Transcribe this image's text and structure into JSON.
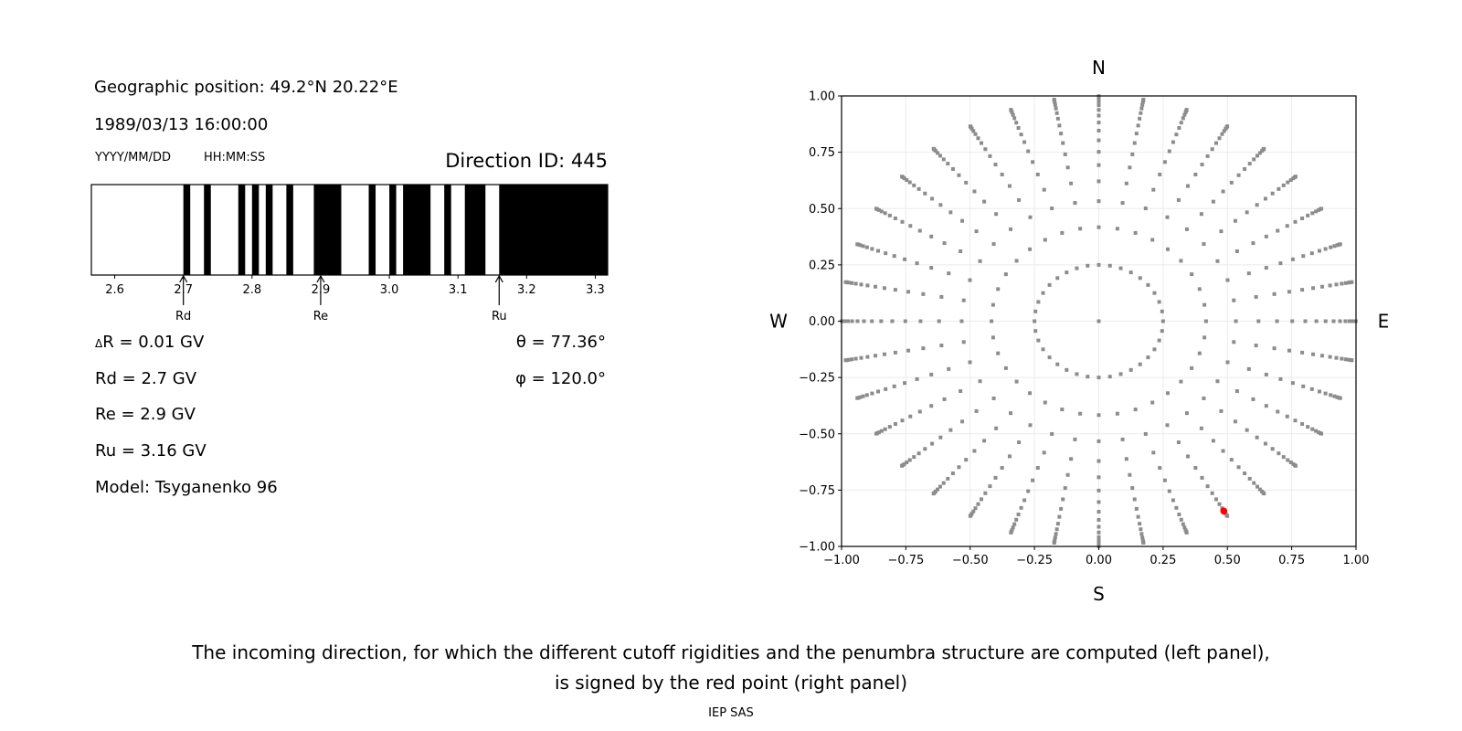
{
  "header": {
    "geo_position": "Geographic position: 49.2°N 20.22°E",
    "datetime": "1989/03/13 16:00:00",
    "date_format": "YYYY/MM/DD",
    "time_format": "HH:MM:SS",
    "direction_id": "Direction ID: 445"
  },
  "params": {
    "delta_r_symbol": "Δ",
    "delta_r": "R = 0.01 GV",
    "rd": "Rd = 2.7 GV",
    "re": "Re = 2.9 GV",
    "ru": "Ru = 3.16 GV",
    "model": "Model: Tsyganenko 96",
    "theta": "θ = 77.36°",
    "phi": "φ = 120.0°"
  },
  "caption": {
    "line1": "The incoming direction, for which the different cutoff rigidities and the penumbra structure are computed (left panel),",
    "line2": "is signed by the red point (right panel)",
    "credit": "IEP SAS"
  },
  "chart_data": [
    {
      "type": "penumbra-bar",
      "xlim": [
        2.566,
        3.318
      ],
      "xticks": [
        2.6,
        2.7,
        2.8,
        2.9,
        3.0,
        3.1,
        3.2,
        3.3
      ],
      "xtick_labels": [
        "2.6",
        "2.7",
        "2.8",
        "2.9",
        "3.0",
        "3.1",
        "3.2",
        "3.3"
      ],
      "forbidden_color": "#000000",
      "allowed_color": "#ffffff",
      "forbidden_intervals": [
        [
          2.7,
          2.71
        ],
        [
          2.73,
          2.74
        ],
        [
          2.78,
          2.79
        ],
        [
          2.8,
          2.81
        ],
        [
          2.82,
          2.83
        ],
        [
          2.85,
          2.86
        ],
        [
          2.89,
          2.93
        ],
        [
          2.97,
          2.98
        ],
        [
          3.0,
          3.01
        ],
        [
          3.02,
          3.06
        ],
        [
          3.08,
          3.09
        ],
        [
          3.11,
          3.14
        ],
        [
          3.16,
          3.318
        ]
      ],
      "markers": [
        {
          "label": "Rd",
          "value": 2.7
        },
        {
          "label": "Re",
          "value": 2.9
        },
        {
          "label": "Ru",
          "value": 3.16
        }
      ]
    },
    {
      "type": "scatter",
      "xlim": [
        -1.0,
        1.0
      ],
      "ylim": [
        -1.0,
        1.0
      ],
      "grid": true,
      "ticks": [
        -1.0,
        -0.75,
        -0.5,
        -0.25,
        0.0,
        0.25,
        0.5,
        0.75,
        1.0
      ],
      "tick_labels": [
        "−1.00",
        "−0.75",
        "−0.50",
        "−0.25",
        "0.00",
        "0.25",
        "0.50",
        "0.75",
        "1.00"
      ],
      "compass": {
        "north": "N",
        "south": "S",
        "west": "W",
        "east": "E"
      },
      "point_color": "#8c8c8c",
      "highlight_color": "#ff0000",
      "directions_grid": {
        "center": [
          0,
          0
        ],
        "inner_ring_radius": 0.25,
        "inner_ring_azimuth_step_deg": 10,
        "spoke_azimuth_step_deg": 10,
        "spoke_radii": [
          0.417,
          0.533,
          0.621,
          0.693,
          0.752,
          0.803,
          0.846,
          0.882,
          0.913,
          0.938,
          0.959,
          0.975,
          0.987,
          0.995,
          0.999
        ]
      },
      "highlight_point": {
        "x": 0.486,
        "y": -0.843
      }
    }
  ]
}
